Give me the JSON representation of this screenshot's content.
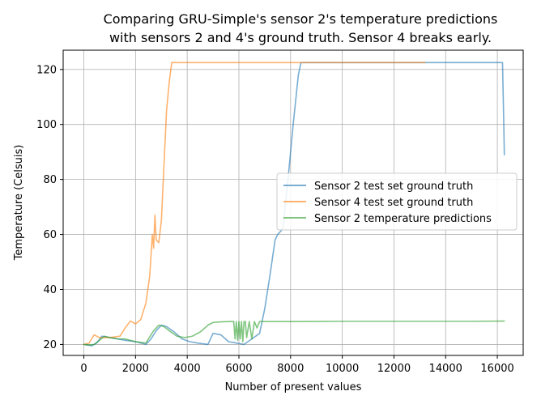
{
  "chart_data": {
    "type": "line",
    "title_lines": [
      "Comparing GRU-Simple's sensor 2's temperature predictions",
      "with sensors 2 and 4's ground truth. Sensor 4 breaks early."
    ],
    "xlabel": "Number of present values",
    "ylabel": "Temperature (Celsuis)",
    "xlim": [
      -800,
      17000
    ],
    "ylim": [
      16,
      127
    ],
    "x_ticks": [
      0,
      2000,
      4000,
      6000,
      8000,
      10000,
      12000,
      14000,
      16000
    ],
    "y_ticks": [
      20,
      40,
      60,
      80,
      100,
      120
    ],
    "grid": true,
    "legend_position": "center-right",
    "series": [
      {
        "name": "Sensor 2 test set ground truth",
        "color": "#1f77b4",
        "x": [
          0,
          300,
          500,
          700,
          1000,
          1300,
          1600,
          2000,
          2400,
          2600,
          2800,
          3000,
          3200,
          3500,
          3800,
          4100,
          4400,
          4800,
          5000,
          5300,
          5600,
          5900,
          6200,
          6500,
          6800,
          7000,
          7200,
          7400,
          7500,
          7700,
          7900,
          8100,
          8300,
          8400,
          10000,
          12000,
          14000,
          16000,
          16200,
          16250,
          16270
        ],
        "y": [
          20,
          19.5,
          20.5,
          23,
          22.5,
          22,
          21.5,
          21,
          20,
          22,
          25,
          27,
          26.5,
          24.5,
          22,
          21,
          20.5,
          20,
          24,
          23.5,
          21,
          20.5,
          20,
          22,
          24,
          33,
          45,
          58,
          60,
          62,
          80,
          100,
          118,
          122.5,
          122.5,
          122.5,
          122.5,
          122.5,
          122.5,
          100,
          89
        ]
      },
      {
        "name": "Sensor 4 test set ground truth",
        "color": "#ff7f0e",
        "x": [
          0,
          200,
          300,
          400,
          600,
          1000,
          1400,
          1600,
          1800,
          2000,
          2200,
          2400,
          2550,
          2650,
          2700,
          2750,
          2800,
          2900,
          3000,
          3100,
          3200,
          3300,
          3400,
          5000,
          8000,
          10000,
          12000,
          13200
        ],
        "y": [
          20,
          20.5,
          22,
          23.5,
          22.5,
          22.5,
          23,
          26,
          28.5,
          27.5,
          29,
          35,
          45,
          60,
          55,
          67,
          58,
          57,
          65,
          85,
          105,
          115,
          122.5,
          122.5,
          122.5,
          122.5,
          122.5,
          122.5
        ]
      },
      {
        "name": "Sensor 2 temperature predictions",
        "color": "#2ca02c",
        "x": [
          0,
          200,
          400,
          600,
          800,
          1000,
          1300,
          1600,
          2000,
          2400,
          2700,
          2900,
          3100,
          3300,
          3600,
          3900,
          4200,
          4500,
          4800,
          5000,
          5300,
          5600,
          5800,
          5850,
          5900,
          5950,
          6000,
          6050,
          6100,
          6150,
          6200,
          6250,
          6300,
          6400,
          6500,
          6600,
          6700,
          6800,
          7000,
          8000,
          10000,
          12000,
          14000,
          15000,
          16270
        ],
        "y": [
          20,
          19.8,
          20,
          21.5,
          23,
          22.5,
          22,
          22,
          21,
          20.5,
          25,
          27,
          26.5,
          25,
          23,
          22.5,
          23,
          24.5,
          27,
          28,
          28.2,
          28.3,
          28.3,
          22,
          28.3,
          21.5,
          28.3,
          22,
          28.3,
          21,
          28.3,
          28.3,
          22.5,
          28.3,
          22,
          28.3,
          26,
          28.3,
          28.3,
          28.3,
          28.4,
          28.4,
          28.4,
          28.4,
          28.5
        ]
      }
    ]
  }
}
